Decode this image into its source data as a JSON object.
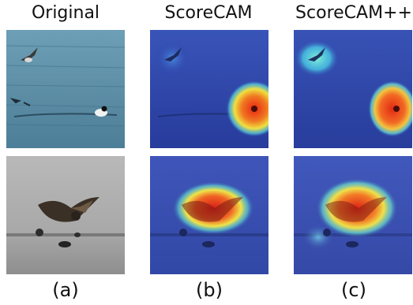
{
  "columns": [
    {
      "title": "Original",
      "label": "(a)"
    },
    {
      "title": "ScoreCAM",
      "label": "(b)"
    },
    {
      "title": "ScoreCAM++",
      "label": "(c)"
    }
  ],
  "rows": [
    {
      "subject": "birds-over-water"
    },
    {
      "subject": "goose-landing"
    }
  ],
  "colors": {
    "water_blue": "#5f8fa6",
    "cam_blue": "#2b3fa8",
    "heat_red": "#e02a14",
    "heat_yellow": "#f0e040",
    "heat_cyan": "#49d6e8"
  }
}
